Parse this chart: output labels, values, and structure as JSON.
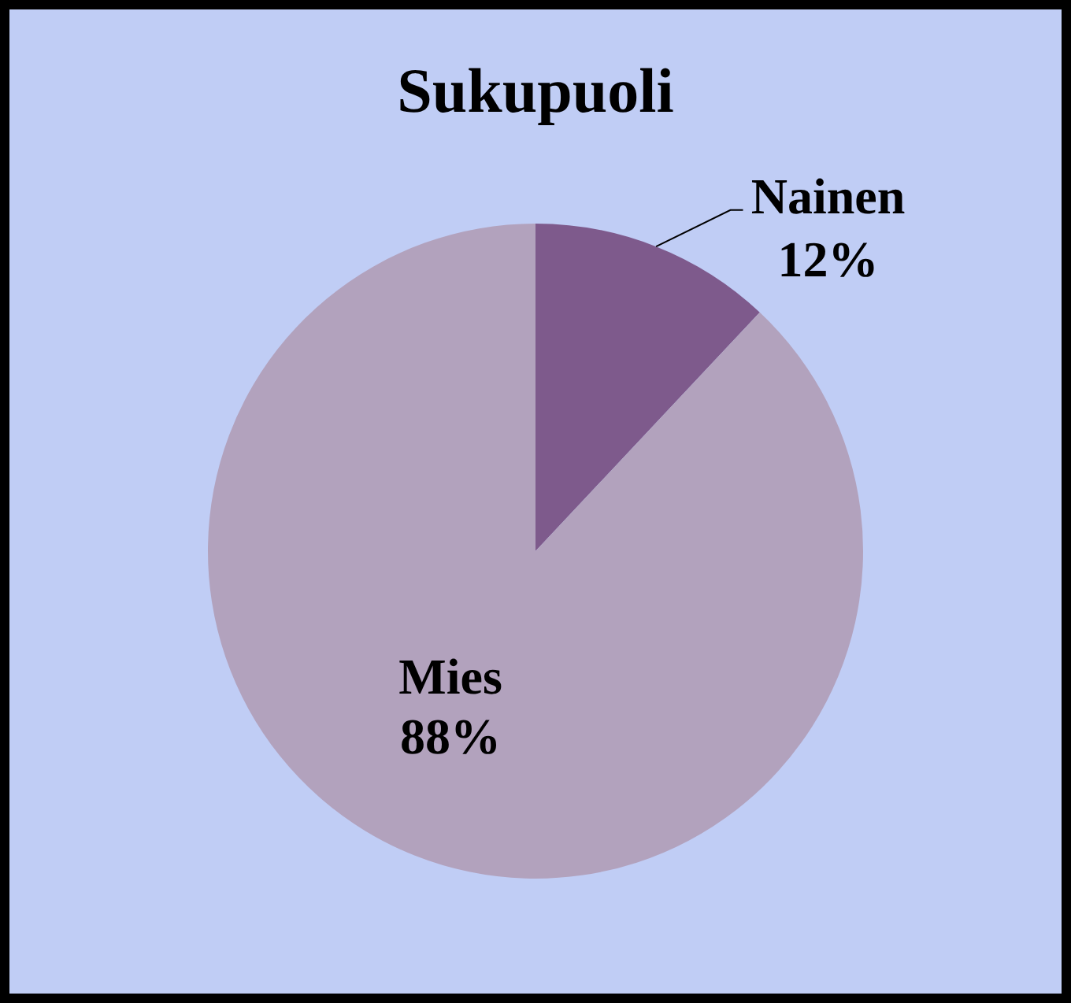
{
  "chart_data": {
    "type": "pie",
    "title": "Sukupuoli",
    "categories": [
      "Nainen",
      "Mies"
    ],
    "values": [
      12,
      88
    ],
    "colors": [
      "#7e5a8c",
      "#b2a2bd"
    ],
    "value_labels": [
      "12%",
      "88%"
    ],
    "legend": false
  }
}
